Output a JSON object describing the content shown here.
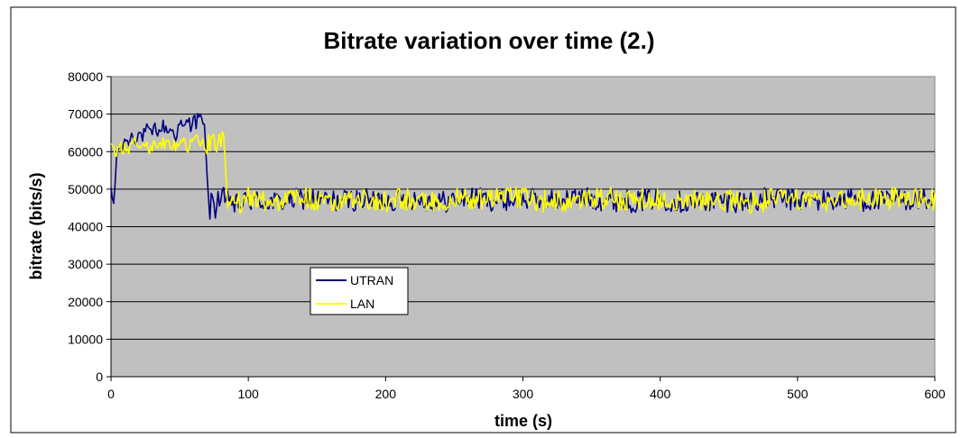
{
  "chart_data": {
    "type": "line",
    "title": "Bitrate variation over time (2.)",
    "xlabel": "time (s)",
    "ylabel": "bitrate (bits/s)",
    "xlim": [
      0,
      600
    ],
    "ylim": [
      0,
      80000
    ],
    "x_ticks": [
      0,
      100,
      200,
      300,
      400,
      500,
      600
    ],
    "y_ticks": [
      0,
      10000,
      20000,
      30000,
      40000,
      50000,
      60000,
      70000,
      80000
    ],
    "grid": "horizontal",
    "plot_background": "#c0c0c0",
    "legend_position": "lower-left",
    "series": [
      {
        "name": "UTRAN",
        "color": "#000080",
        "points": [
          [
            0,
            49000
          ],
          [
            2,
            46000
          ],
          [
            4,
            58000
          ],
          [
            6,
            62000
          ],
          [
            8,
            60000
          ],
          [
            10,
            64000
          ],
          [
            12,
            62000
          ],
          [
            15,
            64500
          ],
          [
            18,
            63500
          ],
          [
            20,
            65000
          ],
          [
            23,
            64000
          ],
          [
            26,
            66000
          ],
          [
            29,
            64500
          ],
          [
            32,
            66500
          ],
          [
            35,
            65000
          ],
          [
            38,
            67000
          ],
          [
            41,
            65500
          ],
          [
            44,
            66000
          ],
          [
            47,
            64000
          ],
          [
            50,
            67500
          ],
          [
            53,
            66000
          ],
          [
            56,
            68500
          ],
          [
            58,
            67000
          ],
          [
            60,
            69500
          ],
          [
            62,
            67500
          ],
          [
            64,
            70000
          ],
          [
            66,
            68000
          ],
          [
            68,
            66000
          ],
          [
            69,
            62000
          ],
          [
            70,
            53000
          ],
          [
            71,
            46000
          ],
          [
            72,
            44500
          ],
          [
            74,
            47500
          ],
          [
            76,
            45000
          ],
          [
            78,
            48000
          ],
          [
            80,
            46500
          ],
          [
            82,
            47500
          ],
          [
            84,
            45500
          ],
          [
            86,
            48000
          ],
          [
            90,
            45500
          ],
          [
            100,
            47000
          ],
          [
            120,
            46500
          ],
          [
            140,
            47500
          ],
          [
            160,
            46800
          ],
          [
            180,
            47200
          ],
          [
            200,
            47000
          ],
          [
            220,
            47500
          ],
          [
            240,
            46500
          ],
          [
            260,
            47800
          ],
          [
            280,
            47000
          ],
          [
            300,
            47400
          ],
          [
            320,
            46900
          ],
          [
            340,
            47600
          ],
          [
            360,
            47200
          ],
          [
            380,
            46700
          ],
          [
            400,
            47400
          ],
          [
            420,
            46400
          ],
          [
            440,
            47000
          ],
          [
            460,
            46700
          ],
          [
            480,
            47500
          ],
          [
            500,
            47100
          ],
          [
            520,
            46900
          ],
          [
            540,
            47400
          ],
          [
            560,
            46600
          ],
          [
            580,
            47300
          ],
          [
            600,
            47000
          ]
        ],
        "noise_amplitude": 3000
      },
      {
        "name": "LAN",
        "color": "#ffff00",
        "points": [
          [
            0,
            62000
          ],
          [
            2,
            61000
          ],
          [
            4,
            60000
          ],
          [
            6,
            62500
          ],
          [
            8,
            59500
          ],
          [
            10,
            62000
          ],
          [
            13,
            60500
          ],
          [
            16,
            63000
          ],
          [
            20,
            61000
          ],
          [
            24,
            62500
          ],
          [
            28,
            60000
          ],
          [
            32,
            63500
          ],
          [
            36,
            61000
          ],
          [
            40,
            63000
          ],
          [
            44,
            61500
          ],
          [
            48,
            62000
          ],
          [
            52,
            63500
          ],
          [
            56,
            61000
          ],
          [
            60,
            63000
          ],
          [
            64,
            62500
          ],
          [
            68,
            61500
          ],
          [
            72,
            63000
          ],
          [
            76,
            62000
          ],
          [
            80,
            63500
          ],
          [
            82,
            62000
          ],
          [
            83,
            56000
          ],
          [
            84,
            50000
          ],
          [
            85,
            46000
          ],
          [
            88,
            47500
          ],
          [
            92,
            46000
          ],
          [
            100,
            47500
          ],
          [
            120,
            46800
          ],
          [
            140,
            47800
          ],
          [
            160,
            46500
          ],
          [
            180,
            47800
          ],
          [
            200,
            46800
          ],
          [
            220,
            47600
          ],
          [
            240,
            46500
          ],
          [
            260,
            47600
          ],
          [
            280,
            47200
          ],
          [
            300,
            47700
          ],
          [
            320,
            46600
          ],
          [
            340,
            47500
          ],
          [
            360,
            47600
          ],
          [
            380,
            46900
          ],
          [
            400,
            47500
          ],
          [
            420,
            46900
          ],
          [
            440,
            47300
          ],
          [
            460,
            46300
          ],
          [
            480,
            47100
          ],
          [
            500,
            47500
          ],
          [
            520,
            46800
          ],
          [
            540,
            47300
          ],
          [
            560,
            47300
          ],
          [
            580,
            47700
          ],
          [
            600,
            47200
          ]
        ],
        "noise_amplitude": 3000
      }
    ]
  }
}
